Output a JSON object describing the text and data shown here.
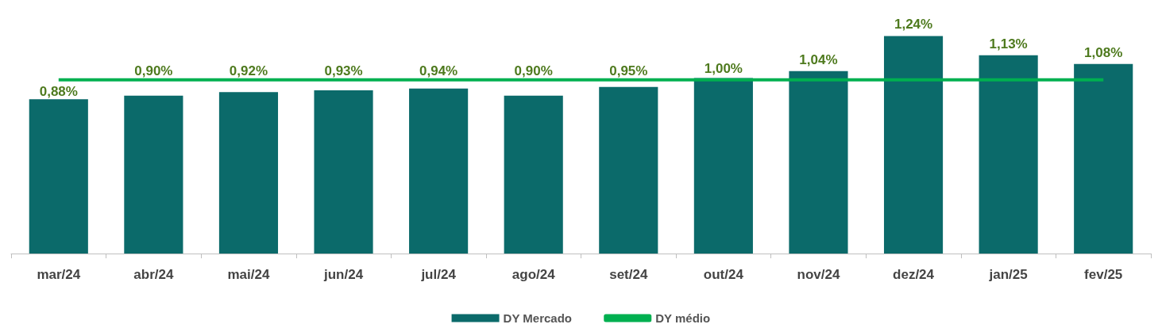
{
  "chart_data": {
    "type": "bar",
    "categories": [
      "mar/24",
      "abr/24",
      "mai/24",
      "jun/24",
      "jul/24",
      "ago/24",
      "set/24",
      "out/24",
      "nov/24",
      "dez/24",
      "jan/25",
      "fev/25"
    ],
    "series": [
      {
        "name": "DY Mercado",
        "color": "#0b6a6a",
        "values": [
          0.88,
          0.9,
          0.92,
          0.93,
          0.94,
          0.9,
          0.95,
          1.0,
          1.04,
          1.24,
          1.13,
          1.08
        ],
        "value_labels": [
          "0,88%",
          "0,90%",
          "0,92%",
          "0,93%",
          "0,94%",
          "0,90%",
          "0,95%",
          "1,00%",
          "1,04%",
          "1,24%",
          "1,13%",
          "1,08%"
        ]
      },
      {
        "name": "DY médio",
        "type": "line",
        "color": "#00b050",
        "values": [
          0.99,
          0.99,
          0.99,
          0.99,
          0.99,
          0.99,
          0.99,
          0.99,
          0.99,
          0.99,
          0.99,
          0.99
        ]
      }
    ],
    "legend": "bottom",
    "grid": false,
    "marker": "none"
  }
}
